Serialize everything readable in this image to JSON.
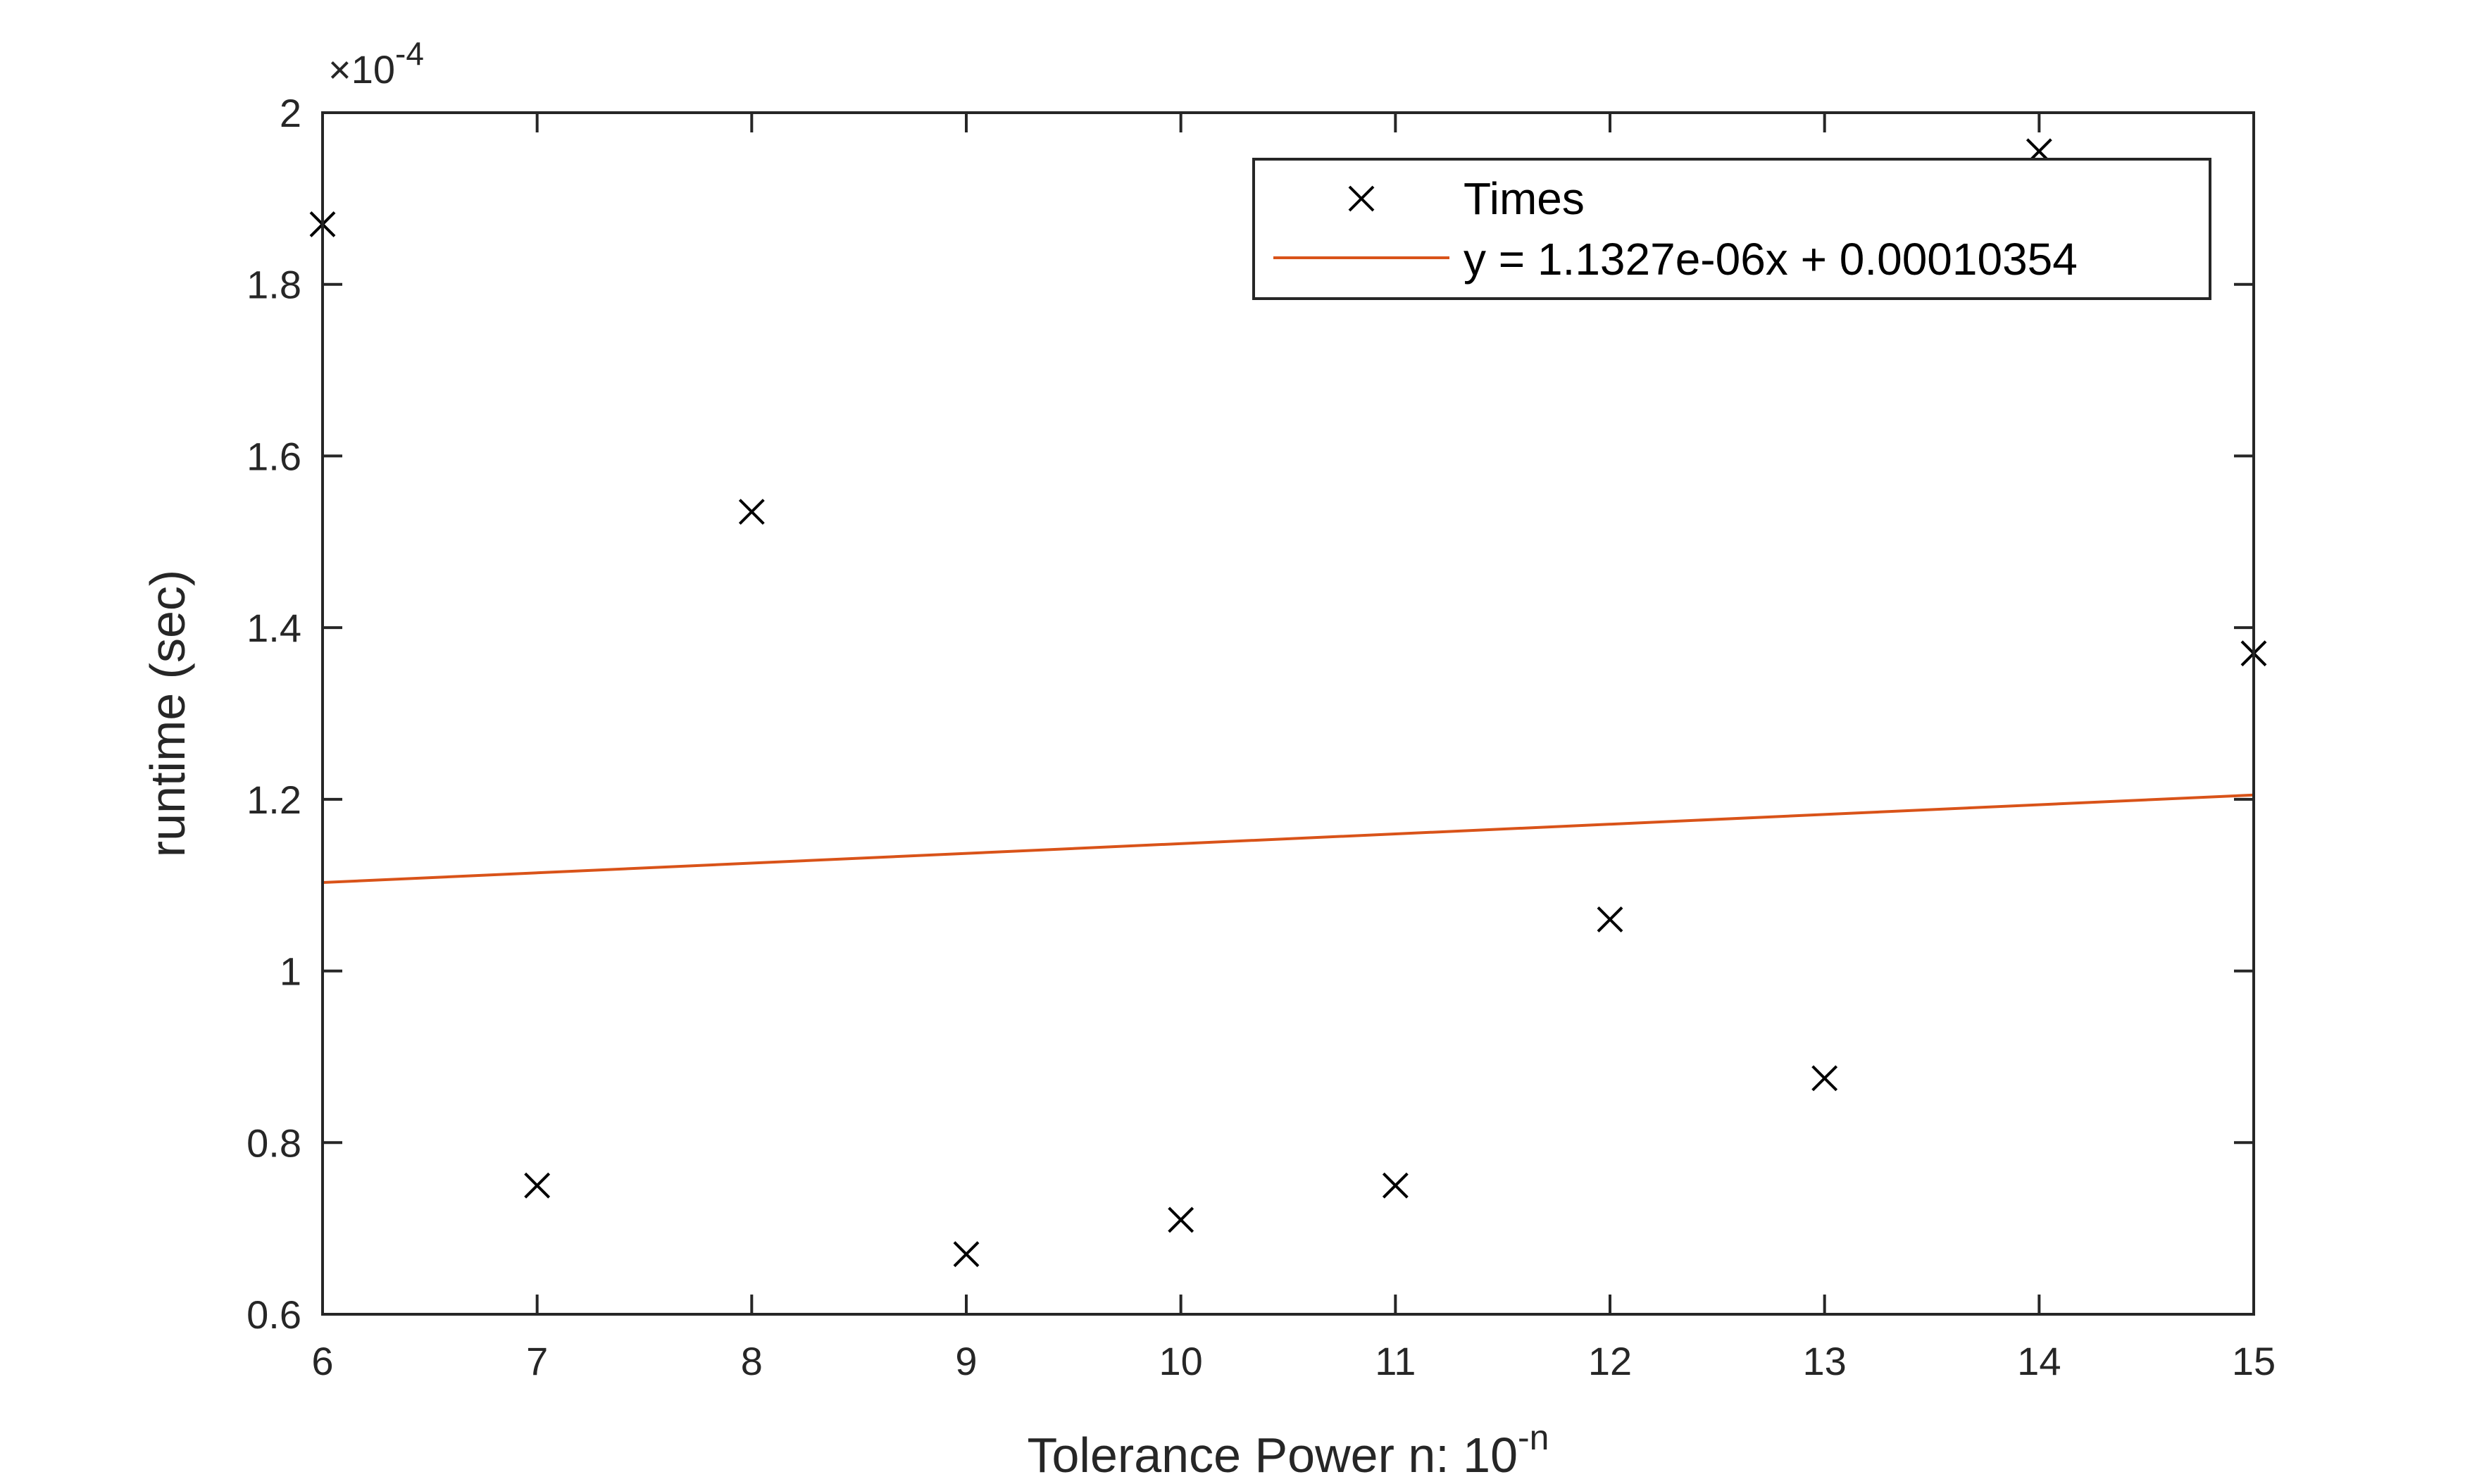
{
  "chart_data": {
    "type": "scatter",
    "xlabel": "Tolerance  Power  n:  10",
    "xlabel_superscript": "-n",
    "ylabel": "runtime (sec)",
    "y_multiplier": "×10",
    "y_multiplier_exponent": "-4",
    "xlim": [
      6,
      15
    ],
    "ylim": [
      0.6,
      2
    ],
    "x_ticks": [
      6,
      7,
      8,
      9,
      10,
      11,
      12,
      13,
      14,
      15
    ],
    "x_tick_labels": [
      "6",
      "7",
      "8",
      "9",
      "10",
      "11",
      "12",
      "13",
      "14",
      "15"
    ],
    "y_ticks": [
      0.6,
      0.8,
      1,
      1.2,
      1.4,
      1.6,
      1.8,
      2
    ],
    "y_tick_labels": [
      "0.6",
      "0.8",
      "1",
      "1.2",
      "1.4",
      "1.6",
      "1.8",
      "2"
    ],
    "grid": false,
    "legend_position": "top-right",
    "series": [
      {
        "name": "Times",
        "type": "scatter",
        "marker": "x",
        "color": "#000000",
        "x": [
          6,
          7,
          8,
          9,
          10,
          11,
          12,
          13,
          14,
          15
        ],
        "y": [
          1.87,
          0.75,
          1.535,
          0.67,
          0.71,
          0.75,
          1.06,
          0.875,
          1.955,
          1.37
        ]
      },
      {
        "name": "y = 1.1327e-06x + 0.00010354",
        "type": "line",
        "color": "#D95319",
        "x": [
          6,
          15
        ],
        "y": [
          1.103,
          1.205
        ]
      }
    ]
  }
}
